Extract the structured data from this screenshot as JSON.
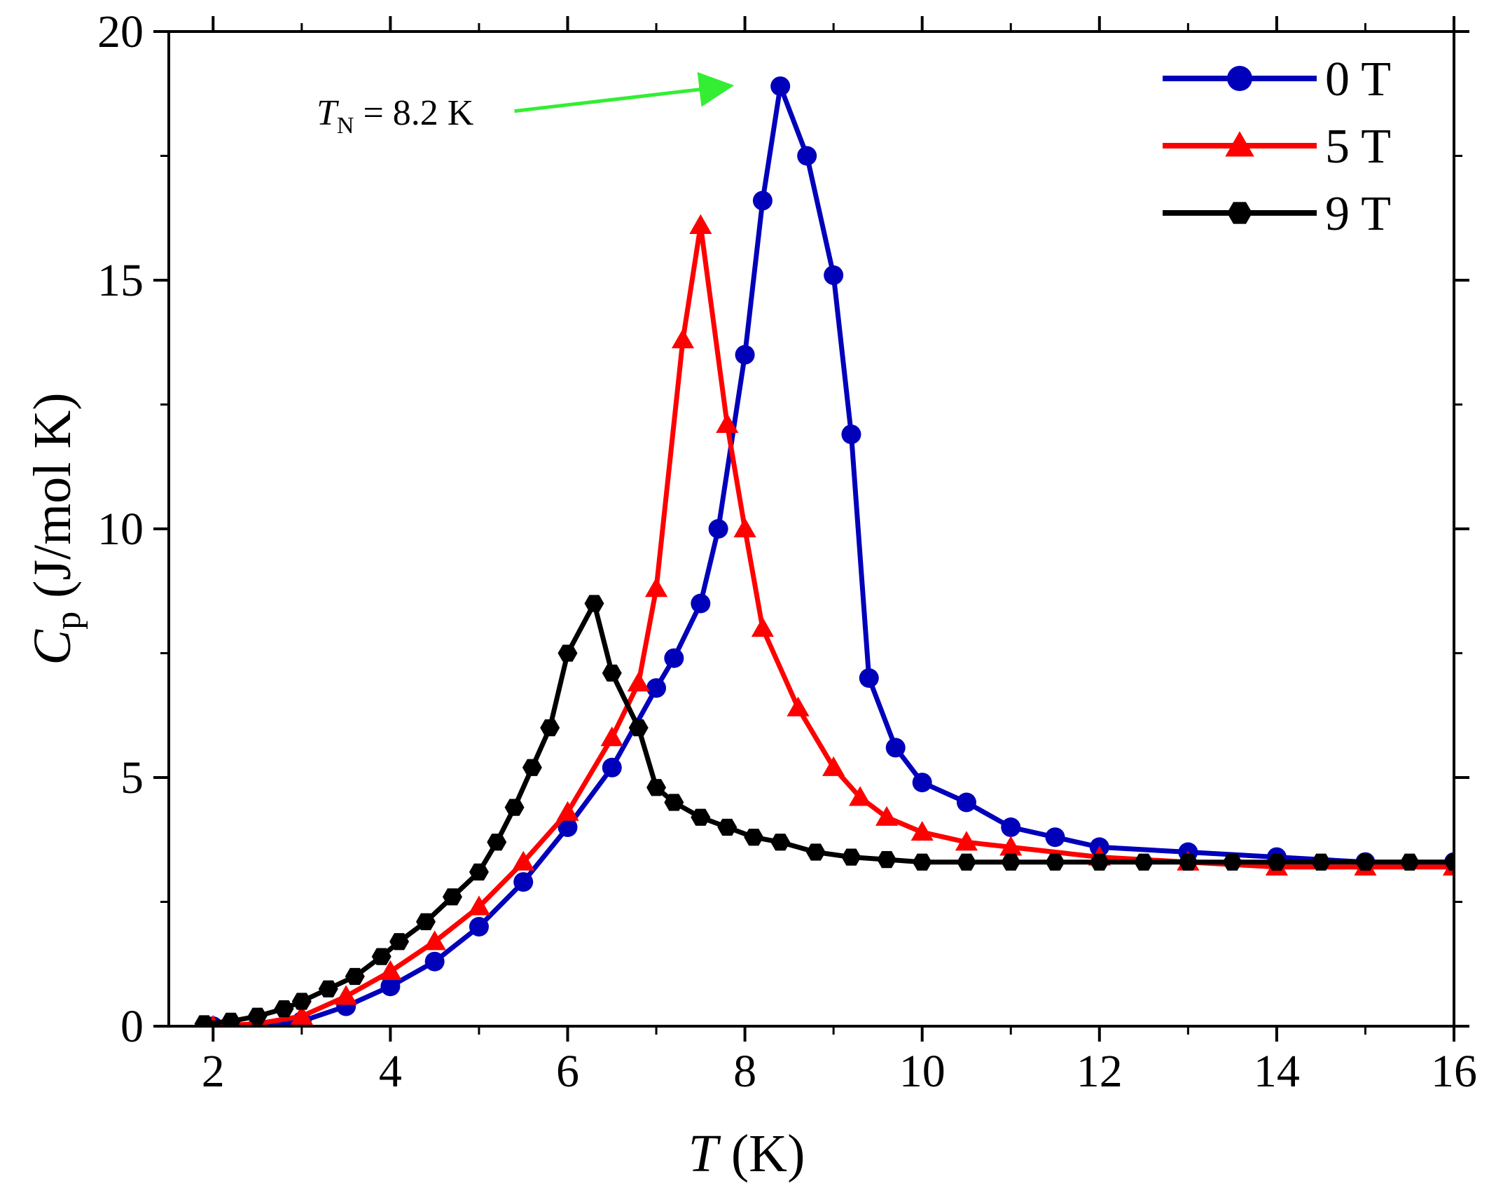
{
  "chart_data": {
    "type": "line",
    "title": "",
    "xlabel": {
      "var": "T",
      "unit": "(K)"
    },
    "ylabel": {
      "var": "C",
      "sub": "p",
      "unit": "(J/mol K)"
    },
    "xlim": [
      1.5,
      16
    ],
    "ylim": [
      0,
      20
    ],
    "xticks": [
      2,
      4,
      6,
      8,
      10,
      12,
      14,
      16
    ],
    "xtick_labels": [
      "2",
      "4",
      "6",
      "8",
      "10",
      "12",
      "14",
      "16"
    ],
    "xminor": [
      3,
      5,
      7,
      9,
      11,
      13,
      15
    ],
    "yticks": [
      0,
      5,
      10,
      15,
      20
    ],
    "ytick_labels": [
      "0",
      "5",
      "10",
      "15",
      "20"
    ],
    "yminor": [
      2.5,
      7.5,
      12.5,
      17.5
    ],
    "legend_position": "top-right",
    "annotation": {
      "var": "T",
      "sub": "N",
      "text": " = 8.2 K",
      "arrow_from": [
        5.4,
        18.4
      ],
      "arrow_to": [
        7.8,
        18.9
      ],
      "arrow_color": "#33ee33"
    },
    "series": [
      {
        "name": "0 T",
        "color": "#0000bb",
        "marker": "circle",
        "x": [
          2.0,
          2.5,
          3.0,
          3.5,
          4.0,
          4.5,
          5.0,
          5.5,
          6.0,
          6.5,
          7.0,
          7.2,
          7.5,
          7.7,
          8.0,
          8.2,
          8.4,
          8.7,
          9.0,
          9.2,
          9.4,
          9.7,
          10.0,
          10.5,
          11.0,
          11.5,
          12.0,
          13.0,
          14.0,
          15.0,
          16.0
        ],
        "y": [
          0.0,
          0.0,
          0.1,
          0.4,
          0.8,
          1.3,
          2.0,
          2.9,
          4.0,
          5.2,
          6.8,
          7.4,
          8.5,
          10.0,
          13.5,
          16.6,
          18.9,
          17.5,
          15.1,
          11.9,
          7.0,
          5.6,
          4.9,
          4.5,
          4.0,
          3.8,
          3.6,
          3.5,
          3.4,
          3.3,
          3.3
        ]
      },
      {
        "name": "5 T",
        "color": "#ff0000",
        "marker": "triangle",
        "x": [
          2.0,
          2.5,
          3.0,
          3.5,
          4.0,
          4.5,
          5.0,
          5.5,
          6.0,
          6.5,
          6.8,
          7.0,
          7.3,
          7.5,
          7.8,
          8.0,
          8.2,
          8.6,
          9.0,
          9.3,
          9.6,
          10.0,
          10.5,
          11.0,
          12.0,
          13.0,
          14.0,
          15.0,
          16.0
        ],
        "y": [
          0.0,
          0.05,
          0.2,
          0.6,
          1.1,
          1.7,
          2.4,
          3.3,
          4.3,
          5.8,
          6.9,
          8.8,
          13.8,
          16.1,
          12.1,
          10.0,
          8.0,
          6.4,
          5.2,
          4.6,
          4.2,
          3.9,
          3.7,
          3.6,
          3.4,
          3.3,
          3.2,
          3.2,
          3.2
        ]
      },
      {
        "name": "9 T",
        "color": "#000000",
        "marker": "hexagon",
        "x": [
          1.9,
          2.2,
          2.5,
          2.8,
          3.0,
          3.3,
          3.6,
          3.9,
          4.1,
          4.4,
          4.7,
          5.0,
          5.2,
          5.4,
          5.6,
          5.8,
          6.0,
          6.3,
          6.5,
          6.8,
          7.0,
          7.2,
          7.5,
          7.8,
          8.1,
          8.4,
          8.8,
          9.2,
          9.6,
          10.0,
          10.5,
          11.0,
          11.5,
          12.0,
          12.5,
          13.0,
          13.5,
          14.0,
          14.5,
          15.0,
          15.5,
          16.0
        ],
        "y": [
          0.05,
          0.1,
          0.2,
          0.35,
          0.5,
          0.75,
          1.0,
          1.4,
          1.7,
          2.1,
          2.6,
          3.1,
          3.7,
          4.4,
          5.2,
          6.0,
          7.5,
          8.5,
          7.1,
          6.0,
          4.8,
          4.5,
          4.2,
          4.0,
          3.8,
          3.7,
          3.5,
          3.4,
          3.35,
          3.3,
          3.3,
          3.3,
          3.3,
          3.3,
          3.3,
          3.3,
          3.3,
          3.3,
          3.3,
          3.3,
          3.3,
          3.3
        ]
      }
    ]
  }
}
